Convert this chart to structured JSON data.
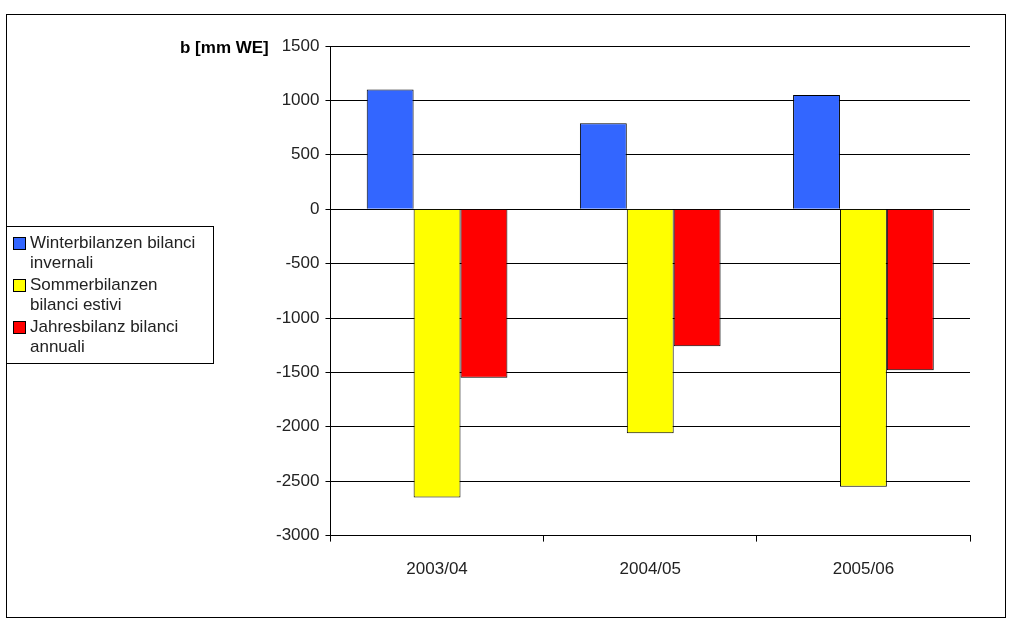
{
  "chart_data": {
    "type": "bar",
    "ylabel": "b [mm WE]",
    "categories": [
      "2003/04",
      "2004/05",
      "2005/06"
    ],
    "series": [
      {
        "name": "Winterbilanzen bilanci invernali",
        "color": "#3366ff",
        "values": [
          1100,
          790,
          1050
        ]
      },
      {
        "name": "Sommerbilanzen bilanci estivi",
        "color": "#ffff00",
        "values": [
          -2650,
          -2060,
          -2550
        ]
      },
      {
        "name": "Jahresbilanz bilanci annuali",
        "color": "#ff0000",
        "values": [
          -1550,
          -1260,
          -1480
        ]
      }
    ],
    "ylim": [
      -3000,
      1500
    ],
    "yticks": [
      -3000,
      -2500,
      -2000,
      -1500,
      -1000,
      -500,
      0,
      500,
      1000,
      1500
    ],
    "grid": "y",
    "legend": "left"
  }
}
